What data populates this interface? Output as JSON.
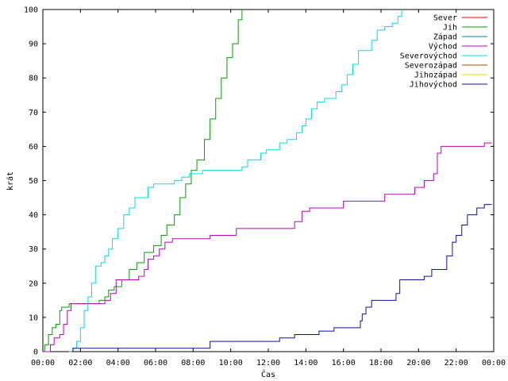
{
  "chart_data": {
    "type": "line",
    "title": "",
    "xlabel": "Čas",
    "ylabel": "krát",
    "xlim": [
      0,
      24
    ],
    "ylim": [
      0,
      100
    ],
    "grid": false,
    "legend_position": "top-right",
    "x_tick_labels": [
      "00:00",
      "02:00",
      "04:00",
      "06:00",
      "08:00",
      "10:00",
      "12:00",
      "14:00",
      "16:00",
      "18:00",
      "20:00",
      "22:00",
      "00:00"
    ],
    "y_tick_labels": [
      "0",
      "10",
      "20",
      "30",
      "40",
      "50",
      "60",
      "70",
      "80",
      "90",
      "100"
    ],
    "series": [
      {
        "name": "Sever",
        "color": "#ff0000",
        "points": []
      },
      {
        "name": "Jih",
        "color": "#00a000",
        "points": [
          [
            0.0,
            0
          ],
          [
            0.1,
            2
          ],
          [
            0.3,
            5
          ],
          [
            0.5,
            7
          ],
          [
            0.7,
            8
          ],
          [
            0.9,
            12
          ],
          [
            1.0,
            13
          ],
          [
            1.4,
            14
          ],
          [
            2.0,
            14
          ],
          [
            2.8,
            14
          ],
          [
            3.0,
            15
          ],
          [
            3.3,
            16
          ],
          [
            3.5,
            18
          ],
          [
            3.8,
            19
          ],
          [
            4.2,
            21
          ],
          [
            4.6,
            24
          ],
          [
            5.0,
            26
          ],
          [
            5.4,
            29
          ],
          [
            5.9,
            31
          ],
          [
            6.3,
            34
          ],
          [
            6.6,
            37
          ],
          [
            7.0,
            40
          ],
          [
            7.3,
            45
          ],
          [
            7.6,
            49
          ],
          [
            7.9,
            53
          ],
          [
            8.2,
            56
          ],
          [
            8.6,
            62
          ],
          [
            8.9,
            68
          ],
          [
            9.2,
            74
          ],
          [
            9.5,
            80
          ],
          [
            9.8,
            86
          ],
          [
            10.1,
            90
          ],
          [
            10.4,
            97
          ],
          [
            10.6,
            100
          ]
        ]
      },
      {
        "name": "Západ",
        "color": "#0080a0",
        "points": []
      },
      {
        "name": "Východ",
        "color": "#c000c0",
        "points": [
          [
            0.0,
            0
          ],
          [
            0.3,
            0
          ],
          [
            0.4,
            2
          ],
          [
            0.6,
            4
          ],
          [
            0.9,
            5
          ],
          [
            1.1,
            8
          ],
          [
            1.3,
            12
          ],
          [
            1.5,
            14
          ],
          [
            2.0,
            14
          ],
          [
            2.8,
            14
          ],
          [
            3.3,
            15
          ],
          [
            3.6,
            17
          ],
          [
            3.9,
            21
          ],
          [
            4.2,
            21
          ],
          [
            5.1,
            22
          ],
          [
            5.4,
            24
          ],
          [
            5.6,
            27
          ],
          [
            5.9,
            28
          ],
          [
            6.2,
            30
          ],
          [
            6.5,
            32
          ],
          [
            6.9,
            33
          ],
          [
            7.5,
            33
          ],
          [
            8.2,
            33
          ],
          [
            8.9,
            34
          ],
          [
            9.8,
            34
          ],
          [
            10.3,
            36
          ],
          [
            12.0,
            36
          ],
          [
            13.1,
            36
          ],
          [
            13.4,
            38
          ],
          [
            13.8,
            41
          ],
          [
            14.2,
            42
          ],
          [
            15.5,
            42
          ],
          [
            16.0,
            44
          ],
          [
            18.0,
            44
          ],
          [
            18.2,
            46
          ],
          [
            19.5,
            46
          ],
          [
            19.8,
            48
          ],
          [
            20.1,
            48
          ],
          [
            20.3,
            50
          ],
          [
            20.8,
            52
          ],
          [
            21.0,
            58
          ],
          [
            21.2,
            60
          ],
          [
            23.0,
            60
          ],
          [
            23.5,
            61
          ],
          [
            23.9,
            61
          ]
        ]
      },
      {
        "name": "Severovýchod",
        "color": "#00e0e0",
        "points": [
          [
            1.4,
            0
          ],
          [
            1.6,
            1
          ],
          [
            1.8,
            3
          ],
          [
            2.0,
            7
          ],
          [
            2.2,
            12
          ],
          [
            2.4,
            16
          ],
          [
            2.6,
            20
          ],
          [
            2.8,
            25
          ],
          [
            3.1,
            26
          ],
          [
            3.3,
            28
          ],
          [
            3.5,
            30
          ],
          [
            3.7,
            33
          ],
          [
            4.0,
            36
          ],
          [
            4.3,
            40
          ],
          [
            4.6,
            42
          ],
          [
            4.9,
            45
          ],
          [
            5.3,
            45
          ],
          [
            5.6,
            48
          ],
          [
            5.9,
            49
          ],
          [
            6.5,
            49
          ],
          [
            7.0,
            50
          ],
          [
            7.4,
            51
          ],
          [
            7.8,
            52
          ],
          [
            8.2,
            52
          ],
          [
            8.5,
            53
          ],
          [
            10.0,
            53
          ],
          [
            10.6,
            54
          ],
          [
            10.9,
            56
          ],
          [
            11.3,
            56
          ],
          [
            11.6,
            58
          ],
          [
            11.9,
            59
          ],
          [
            12.2,
            59
          ],
          [
            12.6,
            61
          ],
          [
            13.0,
            62
          ],
          [
            13.5,
            64
          ],
          [
            13.8,
            66
          ],
          [
            14.0,
            68
          ],
          [
            14.3,
            71
          ],
          [
            14.6,
            73
          ],
          [
            15.0,
            74
          ],
          [
            15.3,
            74
          ],
          [
            15.6,
            76
          ],
          [
            15.9,
            78
          ],
          [
            16.2,
            81
          ],
          [
            16.5,
            84
          ],
          [
            16.8,
            88
          ],
          [
            17.2,
            88
          ],
          [
            17.5,
            91
          ],
          [
            17.8,
            94
          ],
          [
            18.2,
            95
          ],
          [
            18.6,
            96
          ],
          [
            18.9,
            98
          ],
          [
            19.1,
            100
          ]
        ]
      },
      {
        "name": "Severozápad",
        "color": "#a05000",
        "points": []
      },
      {
        "name": "Jihozápad",
        "color": "#e0e000",
        "points": []
      },
      {
        "name": "Jihovýchod",
        "color": "#1010a0",
        "points": [
          [
            1.5,
            0
          ],
          [
            1.6,
            1
          ],
          [
            5.0,
            1
          ],
          [
            8.8,
            1
          ],
          [
            8.9,
            3
          ],
          [
            11.0,
            3
          ],
          [
            12.5,
            3
          ],
          [
            12.6,
            4
          ],
          [
            13.4,
            5
          ],
          [
            14.5,
            5
          ],
          [
            14.7,
            6
          ],
          [
            15.5,
            7
          ],
          [
            16.8,
            7
          ],
          [
            16.9,
            9
          ],
          [
            17.0,
            11
          ],
          [
            17.2,
            13
          ],
          [
            17.5,
            15
          ],
          [
            18.5,
            15
          ],
          [
            18.8,
            17
          ],
          [
            19.0,
            21
          ],
          [
            19.5,
            21
          ],
          [
            20.0,
            21
          ],
          [
            20.3,
            22
          ],
          [
            20.7,
            24
          ],
          [
            21.2,
            24
          ],
          [
            21.5,
            28
          ],
          [
            21.8,
            32
          ],
          [
            22.0,
            34
          ],
          [
            22.3,
            37
          ],
          [
            22.6,
            40
          ],
          [
            22.9,
            40
          ],
          [
            23.1,
            42
          ],
          [
            23.5,
            43
          ],
          [
            23.9,
            43
          ]
        ]
      }
    ]
  }
}
